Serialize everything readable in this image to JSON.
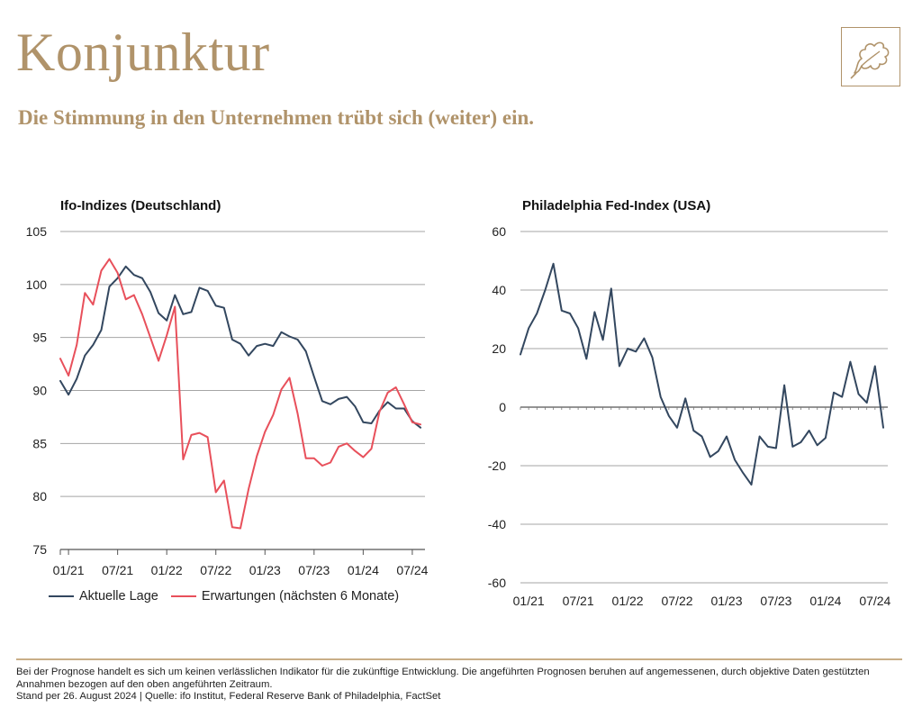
{
  "header": {
    "title": "Konjunktur",
    "subtitle": "Die Stimmung in den Unternehmen trübt sich (weiter) ein."
  },
  "colors": {
    "accent": "#b0936a",
    "series_navy": "#33475f",
    "series_red": "#e8505b",
    "grid": "#9a9a9a"
  },
  "legend": {
    "aktuelle_lage": "Aktuelle Lage",
    "erwartungen": "Erwartungen (nächsten 6 Monate)"
  },
  "footer": {
    "disclaimer": "Bei der Prognose handelt es sich um keinen verlässlichen Indikator für die zukünftige Entwicklung. Die angeführten Prognosen beruhen auf angemessenen, durch objektive Daten gestützten Annahmen bezogen auf den oben angeführten Zeitraum.",
    "source": "Stand per 26. August 2024 | Quelle: ifo Institut, Federal Reserve Bank of Philadelphia, FactSet"
  },
  "chart_data": [
    {
      "type": "line",
      "title": "Ifo-Indizes (Deutschland)",
      "ylim": [
        75,
        105
      ],
      "yticks": [
        75,
        80,
        85,
        90,
        95,
        100,
        105
      ],
      "xtick_labels": [
        "01/21",
        "07/21",
        "01/22",
        "07/22",
        "01/23",
        "07/23",
        "01/24",
        "07/24"
      ],
      "x": [
        "12/20",
        "01/21",
        "02/21",
        "03/21",
        "04/21",
        "05/21",
        "06/21",
        "07/21",
        "08/21",
        "09/21",
        "10/21",
        "11/21",
        "12/21",
        "01/22",
        "02/22",
        "03/22",
        "04/22",
        "05/22",
        "06/22",
        "07/22",
        "08/22",
        "09/22",
        "10/22",
        "11/22",
        "12/22",
        "01/23",
        "02/23",
        "03/23",
        "04/23",
        "05/23",
        "06/23",
        "07/23",
        "08/23",
        "09/23",
        "10/23",
        "11/23",
        "12/23",
        "01/24",
        "02/24",
        "03/24",
        "04/24",
        "05/24",
        "06/24",
        "07/24",
        "08/24"
      ],
      "series": [
        {
          "name": "Aktuelle Lage",
          "color": "#33475f",
          "values": [
            90.9,
            89.6,
            91.1,
            93.3,
            94.3,
            95.7,
            99.8,
            100.6,
            101.7,
            100.9,
            100.6,
            99.3,
            97.3,
            96.6,
            99.0,
            97.2,
            97.4,
            99.7,
            99.4,
            98.0,
            97.8,
            94.8,
            94.4,
            93.3,
            94.2,
            94.4,
            94.2,
            95.5,
            95.1,
            94.8,
            93.7,
            91.3,
            89.0,
            88.7,
            89.2,
            89.4,
            88.5,
            87.0,
            86.9,
            88.1,
            88.9,
            88.3,
            88.3,
            87.1,
            86.5
          ]
        },
        {
          "name": "Erwartungen (nächsten 6 Monate)",
          "color": "#e8505b",
          "values": [
            93.0,
            91.4,
            94.3,
            99.2,
            98.1,
            101.3,
            102.4,
            101.1,
            98.6,
            99.0,
            97.2,
            95.0,
            92.8,
            95.2,
            97.9,
            83.5,
            85.8,
            86.0,
            85.6,
            80.4,
            81.5,
            77.1,
            77.0,
            80.7,
            83.8,
            86.1,
            87.7,
            90.1,
            91.2,
            87.8,
            83.6,
            83.6,
            82.9,
            83.2,
            84.7,
            85.0,
            84.3,
            83.7,
            84.5,
            88.0,
            89.8,
            90.3,
            88.7,
            87.0,
            86.8
          ]
        }
      ]
    },
    {
      "type": "line",
      "title": "Philadelphia Fed-Index (USA)",
      "ylim": [
        -60,
        60
      ],
      "yticks": [
        -60,
        -40,
        -20,
        0,
        20,
        40,
        60
      ],
      "xtick_labels": [
        "01/21",
        "07/21",
        "01/22",
        "07/22",
        "01/23",
        "07/23",
        "01/24",
        "07/24"
      ],
      "x": [
        "12/20",
        "01/21",
        "02/21",
        "03/21",
        "04/21",
        "05/21",
        "06/21",
        "07/21",
        "08/21",
        "09/21",
        "10/21",
        "11/21",
        "12/21",
        "01/22",
        "02/22",
        "03/22",
        "04/22",
        "05/22",
        "06/22",
        "07/22",
        "08/22",
        "09/22",
        "10/22",
        "11/22",
        "12/22",
        "01/23",
        "02/23",
        "03/23",
        "04/23",
        "05/23",
        "06/23",
        "07/23",
        "08/23",
        "09/23",
        "10/23",
        "11/23",
        "12/23",
        "01/24",
        "02/24",
        "03/24",
        "04/24",
        "05/24",
        "06/24",
        "07/24",
        "08/24"
      ],
      "series": [
        {
          "name": "",
          "color": "#33475f",
          "values": [
            18,
            27,
            32,
            40,
            49,
            33,
            32,
            27,
            16.5,
            32.5,
            23,
            40.5,
            14,
            20,
            19,
            23.5,
            17,
            3.5,
            -3,
            -7,
            3,
            -8,
            -10,
            -17,
            -15,
            -10,
            -18,
            -22.5,
            -26.5,
            -10,
            -13.5,
            -14,
            7.5,
            -13.5,
            -12,
            -8,
            -13,
            -10.5,
            5,
            3.5,
            15.5,
            4.5,
            1.5,
            14,
            -7
          ]
        }
      ]
    }
  ]
}
